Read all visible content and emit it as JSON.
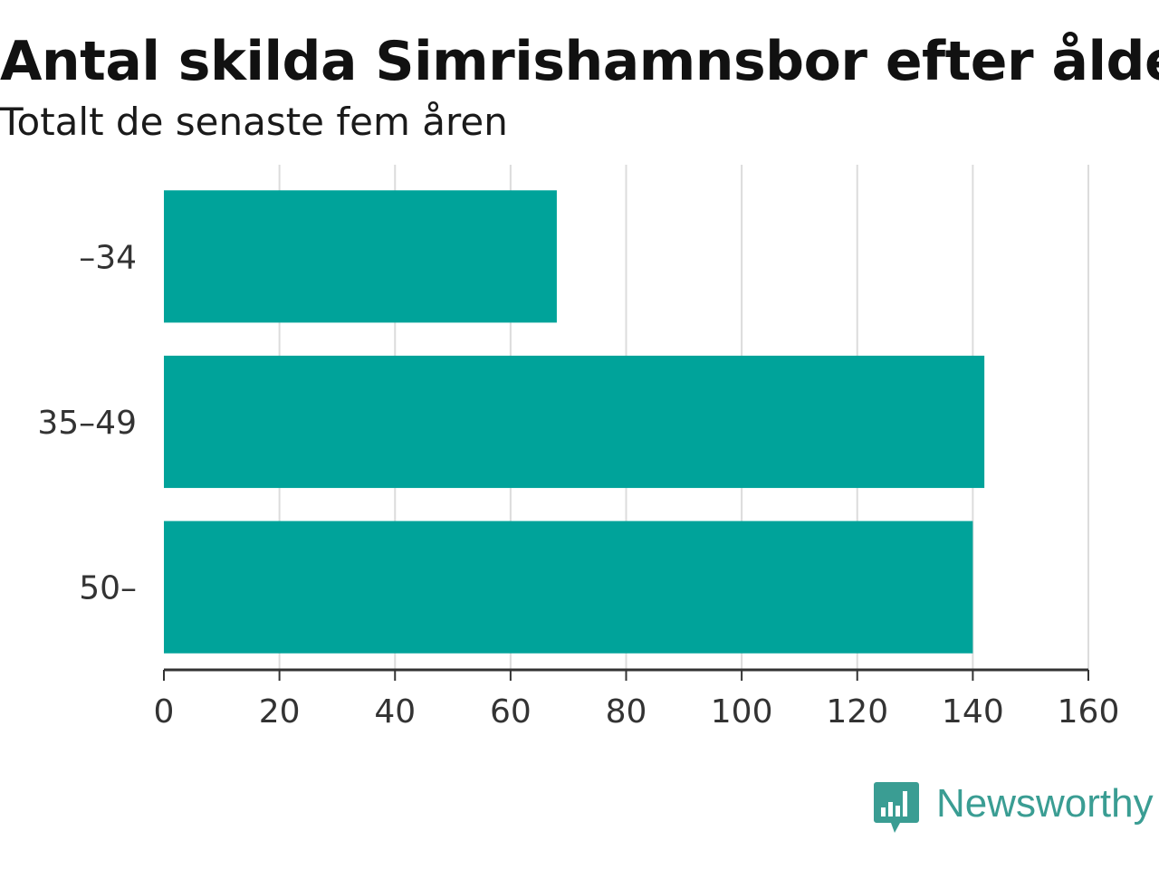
{
  "colors": {
    "bar": "#00a39a",
    "grid": "#dcdcdc",
    "axis": "#333333",
    "logo": "#3a9d93"
  },
  "brand": {
    "name": "Newsworthy",
    "icon": "newsworthy-logo-icon"
  },
  "chart_data": {
    "type": "bar",
    "orientation": "horizontal",
    "title": "Antal skilda Simrishamnsbor efter ålder",
    "subtitle": "Totalt de senaste fem åren",
    "categories": [
      "–34",
      "35–49",
      "50–"
    ],
    "values": [
      68,
      142,
      140
    ],
    "xlim": [
      0,
      160
    ],
    "xticks": [
      "0",
      "20",
      "40",
      "60",
      "80",
      "100",
      "120",
      "140",
      "160"
    ],
    "grid": true
  }
}
